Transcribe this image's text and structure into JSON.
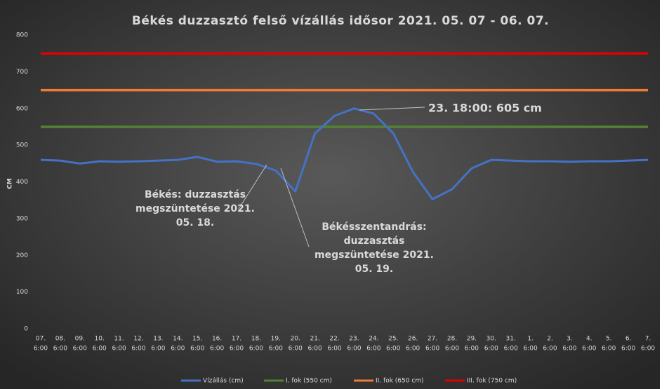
{
  "chart_data": {
    "type": "line",
    "title": "Békés duzzasztó felső vízállás idősor 2021. 05. 07 - 06. 07.",
    "y_label": "CM",
    "categories": [
      [
        "07.",
        "6:00"
      ],
      [
        "08.",
        "6:00"
      ],
      [
        "09.",
        "6:00"
      ],
      [
        "10.",
        "6:00"
      ],
      [
        "11.",
        "6:00"
      ],
      [
        "12.",
        "6:00"
      ],
      [
        "13.",
        "6:00"
      ],
      [
        "14.",
        "6:00"
      ],
      [
        "15.",
        "6:00"
      ],
      [
        "16.",
        "6:00"
      ],
      [
        "17.",
        "6:00"
      ],
      [
        "18.",
        "6:00"
      ],
      [
        "19.",
        "6:00"
      ],
      [
        "20.",
        "6:00"
      ],
      [
        "21.",
        "6:00"
      ],
      [
        "22.",
        "6:00"
      ],
      [
        "23.",
        "6:00"
      ],
      [
        "24.",
        "6:00"
      ],
      [
        "25.",
        "6:00"
      ],
      [
        "26.",
        "6:00"
      ],
      [
        "27.",
        "6:00"
      ],
      [
        "28.",
        "6:00"
      ],
      [
        "29.",
        "6:00"
      ],
      [
        "30.",
        "6:00"
      ],
      [
        "31.",
        "6:00"
      ],
      [
        "1.",
        "6:00"
      ],
      [
        "2.",
        "6:00"
      ],
      [
        "3.",
        "6:00"
      ],
      [
        "4.",
        "6:00"
      ],
      [
        "5.",
        "6:00"
      ],
      [
        "6.",
        "6:00"
      ],
      [
        "7.",
        "6:00"
      ]
    ],
    "series": [
      {
        "name": "Vízállás (cm)",
        "color": "#4472c4",
        "values": [
          460,
          458,
          450,
          456,
          455,
          456,
          458,
          460,
          468,
          455,
          456,
          449,
          431,
          374,
          532,
          580,
          600,
          586,
          532,
          427,
          353,
          380,
          437,
          460,
          458,
          456,
          456,
          455,
          456,
          456,
          458,
          460
        ]
      },
      {
        "name": "I. fok (550 cm)",
        "color": "#548235",
        "values": [
          550,
          550,
          550,
          550,
          550,
          550,
          550,
          550,
          550,
          550,
          550,
          550,
          550,
          550,
          550,
          550,
          550,
          550,
          550,
          550,
          550,
          550,
          550,
          550,
          550,
          550,
          550,
          550,
          550,
          550,
          550,
          550
        ]
      },
      {
        "name": "II. fok (650 cm)",
        "color": "#ed7d31",
        "values": [
          650,
          650,
          650,
          650,
          650,
          650,
          650,
          650,
          650,
          650,
          650,
          650,
          650,
          650,
          650,
          650,
          650,
          650,
          650,
          650,
          650,
          650,
          650,
          650,
          650,
          650,
          650,
          650,
          650,
          650,
          650,
          650
        ]
      },
      {
        "name": "III. fok (750 cm)",
        "color": "#e00000",
        "values": [
          750,
          750,
          750,
          750,
          750,
          750,
          750,
          750,
          750,
          750,
          750,
          750,
          750,
          750,
          750,
          750,
          750,
          750,
          750,
          750,
          750,
          750,
          750,
          750,
          750,
          750,
          750,
          750,
          750,
          750,
          750,
          750
        ]
      }
    ],
    "ylim": [
      0,
      800
    ],
    "yticks": [
      0,
      100,
      200,
      300,
      400,
      500,
      600,
      700,
      800
    ],
    "legend": "bottom",
    "annotations": [
      {
        "lines": [
          "23. 18:00: 605 cm"
        ],
        "color": "#a9d18e"
      },
      {
        "lines": [
          "Békés: duzzasztás",
          "megszüntetése 2021.",
          "05. 18."
        ],
        "color": "#d9d9d9"
      },
      {
        "lines": [
          "Békésszentandrás:",
          "duzzasztás",
          "megszüntetése 2021.",
          "05. 19."
        ],
        "color": "#d9d9d9"
      }
    ]
  }
}
